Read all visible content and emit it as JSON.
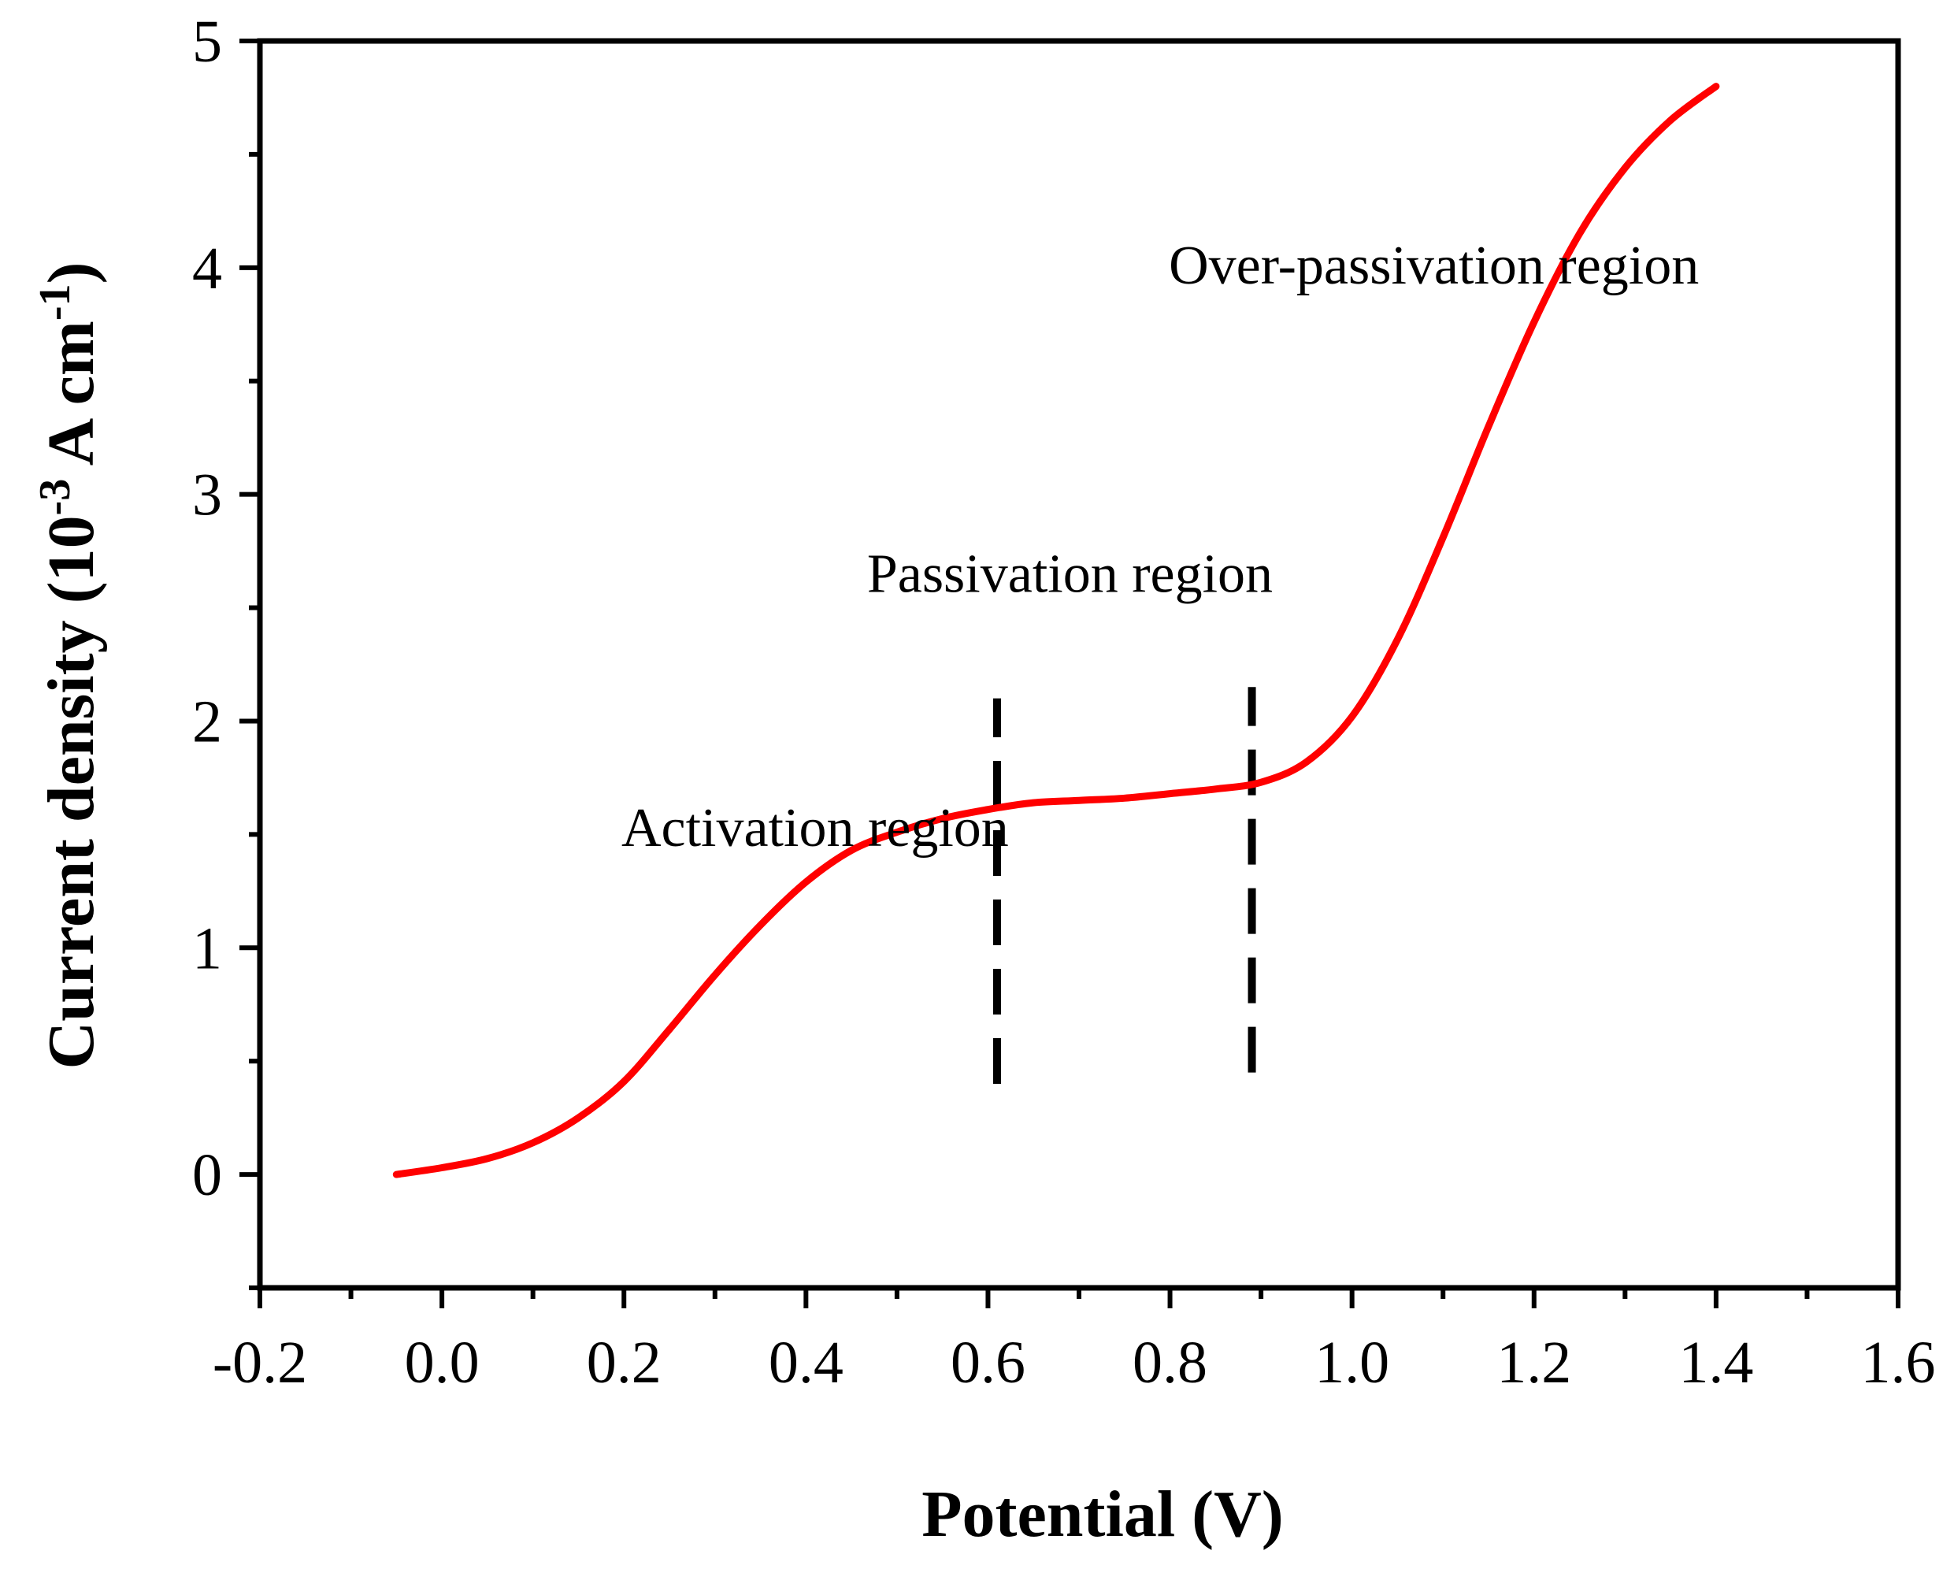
{
  "chart_data": {
    "type": "line",
    "title": "",
    "xlabel": "Potential (V)",
    "ylabel": {
      "prefix": "Current  density (10",
      "exp1": "-3",
      "middle": " A cm",
      "exp2": "-1",
      "suffix": ")"
    },
    "xlim": [
      -0.2,
      1.6
    ],
    "ylim": [
      -0.5,
      5
    ],
    "xticks": [
      -0.2,
      0.0,
      0.2,
      0.4,
      0.6,
      0.8,
      1.0,
      1.2,
      1.4,
      1.6
    ],
    "xtick_labels": [
      "-0.2",
      "0.0",
      "0.2",
      "0.4",
      "0.6",
      "0.8",
      "1.0",
      "1.2",
      "1.4",
      "1.6"
    ],
    "yticks": [
      0,
      1,
      2,
      3,
      4,
      5
    ],
    "ytick_labels": [
      "0",
      "1",
      "2",
      "3",
      "4",
      "5"
    ],
    "grid": false,
    "series": [
      {
        "name": "Current density",
        "color": "#ff0000",
        "x": [
          -0.05,
          0.0,
          0.05,
          0.1,
          0.15,
          0.2,
          0.25,
          0.3,
          0.35,
          0.4,
          0.45,
          0.5,
          0.55,
          0.6,
          0.65,
          0.7,
          0.75,
          0.8,
          0.85,
          0.9,
          0.95,
          1.0,
          1.05,
          1.1,
          1.15,
          1.2,
          1.25,
          1.3,
          1.35,
          1.4
        ],
        "y": [
          0.0,
          0.03,
          0.07,
          0.14,
          0.25,
          0.41,
          0.64,
          0.88,
          1.1,
          1.29,
          1.43,
          1.51,
          1.57,
          1.61,
          1.64,
          1.65,
          1.66,
          1.68,
          1.7,
          1.73,
          1.82,
          2.02,
          2.36,
          2.81,
          3.3,
          3.76,
          4.15,
          4.44,
          4.65,
          4.8
        ]
      }
    ],
    "dashed_lines": [
      {
        "x": 0.61,
        "y_from": 0.4,
        "y_to": 2.1
      },
      {
        "x": 0.89,
        "y_from": 0.45,
        "y_to": 2.15
      }
    ],
    "annotations": [
      {
        "text": "Activation region",
        "x": 0.41,
        "y": 1.45
      },
      {
        "text": "Passivation region",
        "x": 0.69,
        "y": 2.57
      },
      {
        "text": "Over-passivation region",
        "x": 1.09,
        "y": 3.93
      }
    ]
  }
}
